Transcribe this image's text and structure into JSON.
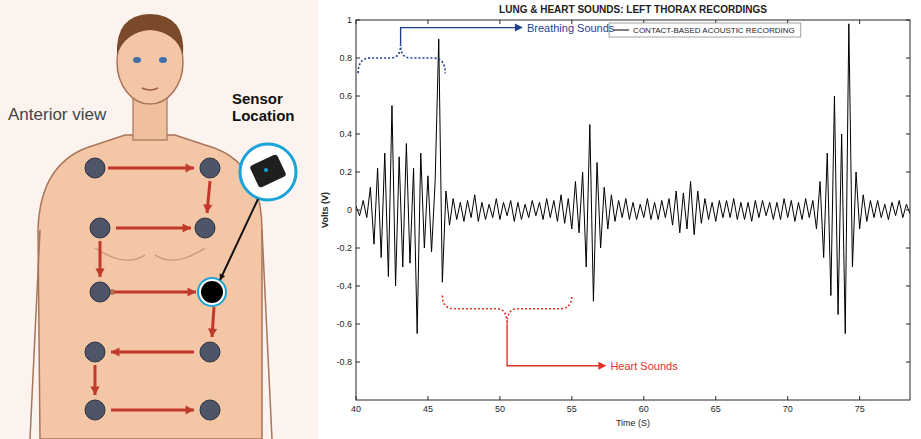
{
  "chart_data": {
    "type": "line",
    "title": "LUNG & HEART SOUNDS: LEFT THORAX RECORDINGS",
    "x_label": "Time (S)",
    "y_label": "Volts (V)",
    "xlim": [
      40,
      78.5
    ],
    "ylim": [
      -1,
      1
    ],
    "xticks": [
      40,
      45,
      50,
      55,
      60,
      65,
      70,
      75
    ],
    "yticks": [
      -0.8,
      -0.6,
      -0.4,
      -0.2,
      0,
      0.2,
      0.4,
      0.6,
      0.8,
      1
    ],
    "grid": false,
    "legend": "upper center",
    "annotations": [
      {
        "text": "Breathing Sounds",
        "color": "#1f3f8f"
      },
      {
        "text": "Heart Sounds",
        "color": "#e8302a"
      }
    ],
    "x": [
      40,
      40.25,
      40.5,
      40.75,
      41,
      41.25,
      41.5,
      41.75,
      42,
      42.25,
      42.5,
      42.75,
      43,
      43.25,
      43.5,
      43.75,
      44,
      44.25,
      44.5,
      44.75,
      45,
      45.25,
      45.5,
      45.75,
      46,
      46.25,
      46.5,
      46.75,
      47,
      47.25,
      47.5,
      47.75,
      48,
      48.25,
      48.5,
      48.75,
      49,
      49.25,
      49.5,
      49.75,
      50,
      50.25,
      50.5,
      50.75,
      51,
      51.25,
      51.5,
      51.75,
      52,
      52.25,
      52.5,
      52.75,
      53,
      53.25,
      53.5,
      53.75,
      54,
      54.25,
      54.5,
      54.75,
      55,
      55.25,
      55.5,
      55.75,
      56,
      56.25,
      56.5,
      56.75,
      57,
      57.25,
      57.5,
      57.75,
      58,
      58.25,
      58.5,
      58.75,
      59,
      59.25,
      59.5,
      59.75,
      60,
      60.25,
      60.5,
      60.75,
      61,
      61.25,
      61.5,
      61.75,
      62,
      62.25,
      62.5,
      62.75,
      63,
      63.25,
      63.5,
      63.75,
      64,
      64.25,
      64.5,
      64.75,
      65,
      65.25,
      65.5,
      65.75,
      66,
      66.25,
      66.5,
      66.75,
      67,
      67.25,
      67.5,
      67.75,
      68,
      68.25,
      68.5,
      68.75,
      69,
      69.25,
      69.5,
      69.75,
      70,
      70.25,
      70.5,
      70.75,
      71,
      71.25,
      71.5,
      71.75,
      72,
      72.25,
      72.5,
      72.75,
      73,
      73.25,
      73.5,
      73.75,
      74,
      74.25,
      74.5,
      74.75,
      75,
      75.25,
      75.5,
      75.75,
      76,
      76.25,
      76.5,
      76.75,
      77,
      77.25,
      77.5,
      77.75,
      78,
      78.25,
      78.5
    ],
    "series": [
      {
        "name": "CONTACT-BASED ACOUSTIC RECORDING",
        "color": "#000000",
        "values": [
          0.02,
          -0.03,
          0.05,
          -0.04,
          0.12,
          -0.18,
          0.22,
          -0.25,
          0.3,
          -0.35,
          0.55,
          -0.4,
          0.28,
          -0.3,
          0.35,
          -0.28,
          0.22,
          -0.65,
          0.3,
          -0.2,
          0.18,
          -0.22,
          0.15,
          0.9,
          -0.38,
          0.1,
          -0.08,
          0.06,
          -0.05,
          0.04,
          -0.06,
          0.05,
          -0.04,
          0.08,
          -0.06,
          0.04,
          -0.05,
          0.03,
          -0.04,
          0.06,
          -0.05,
          0.04,
          -0.03,
          0.05,
          -0.06,
          0.04,
          -0.05,
          0.03,
          -0.04,
          0.05,
          -0.03,
          0.04,
          -0.05,
          0.06,
          -0.04,
          0.05,
          -0.06,
          0.08,
          -0.07,
          0.06,
          -0.1,
          0.15,
          -0.12,
          0.2,
          -0.3,
          0.45,
          -0.48,
          0.25,
          -0.2,
          0.12,
          -0.1,
          0.08,
          -0.06,
          0.05,
          -0.04,
          0.06,
          -0.05,
          0.04,
          -0.05,
          0.03,
          -0.04,
          0.06,
          -0.05,
          0.04,
          -0.05,
          0.05,
          -0.04,
          0.06,
          -0.08,
          0.1,
          -0.12,
          0.09,
          -0.1,
          0.15,
          -0.13,
          0.1,
          -0.07,
          0.06,
          -0.05,
          0.04,
          -0.06,
          0.05,
          -0.04,
          0.05,
          -0.04,
          0.06,
          -0.05,
          0.04,
          -0.05,
          0.04,
          -0.06,
          0.05,
          -0.04,
          0.05,
          -0.03,
          0.04,
          -0.05,
          0.04,
          -0.05,
          0.06,
          -0.04,
          0.05,
          -0.06,
          0.04,
          -0.05,
          0.06,
          -0.04,
          0.05,
          -0.1,
          0.15,
          -0.25,
          0.3,
          -0.45,
          0.6,
          -0.55,
          0.4,
          -0.65,
          0.98,
          -0.3,
          0.2,
          -0.1,
          0.08,
          -0.06,
          0.05,
          -0.04,
          0.05,
          -0.04,
          0.03,
          -0.05,
          0.04,
          -0.03,
          0.05,
          -0.04,
          0.03,
          -0.02
        ]
      }
    ]
  },
  "diagram": {
    "view_label": "Anterior view",
    "sensor_label": "Sensor Location"
  }
}
